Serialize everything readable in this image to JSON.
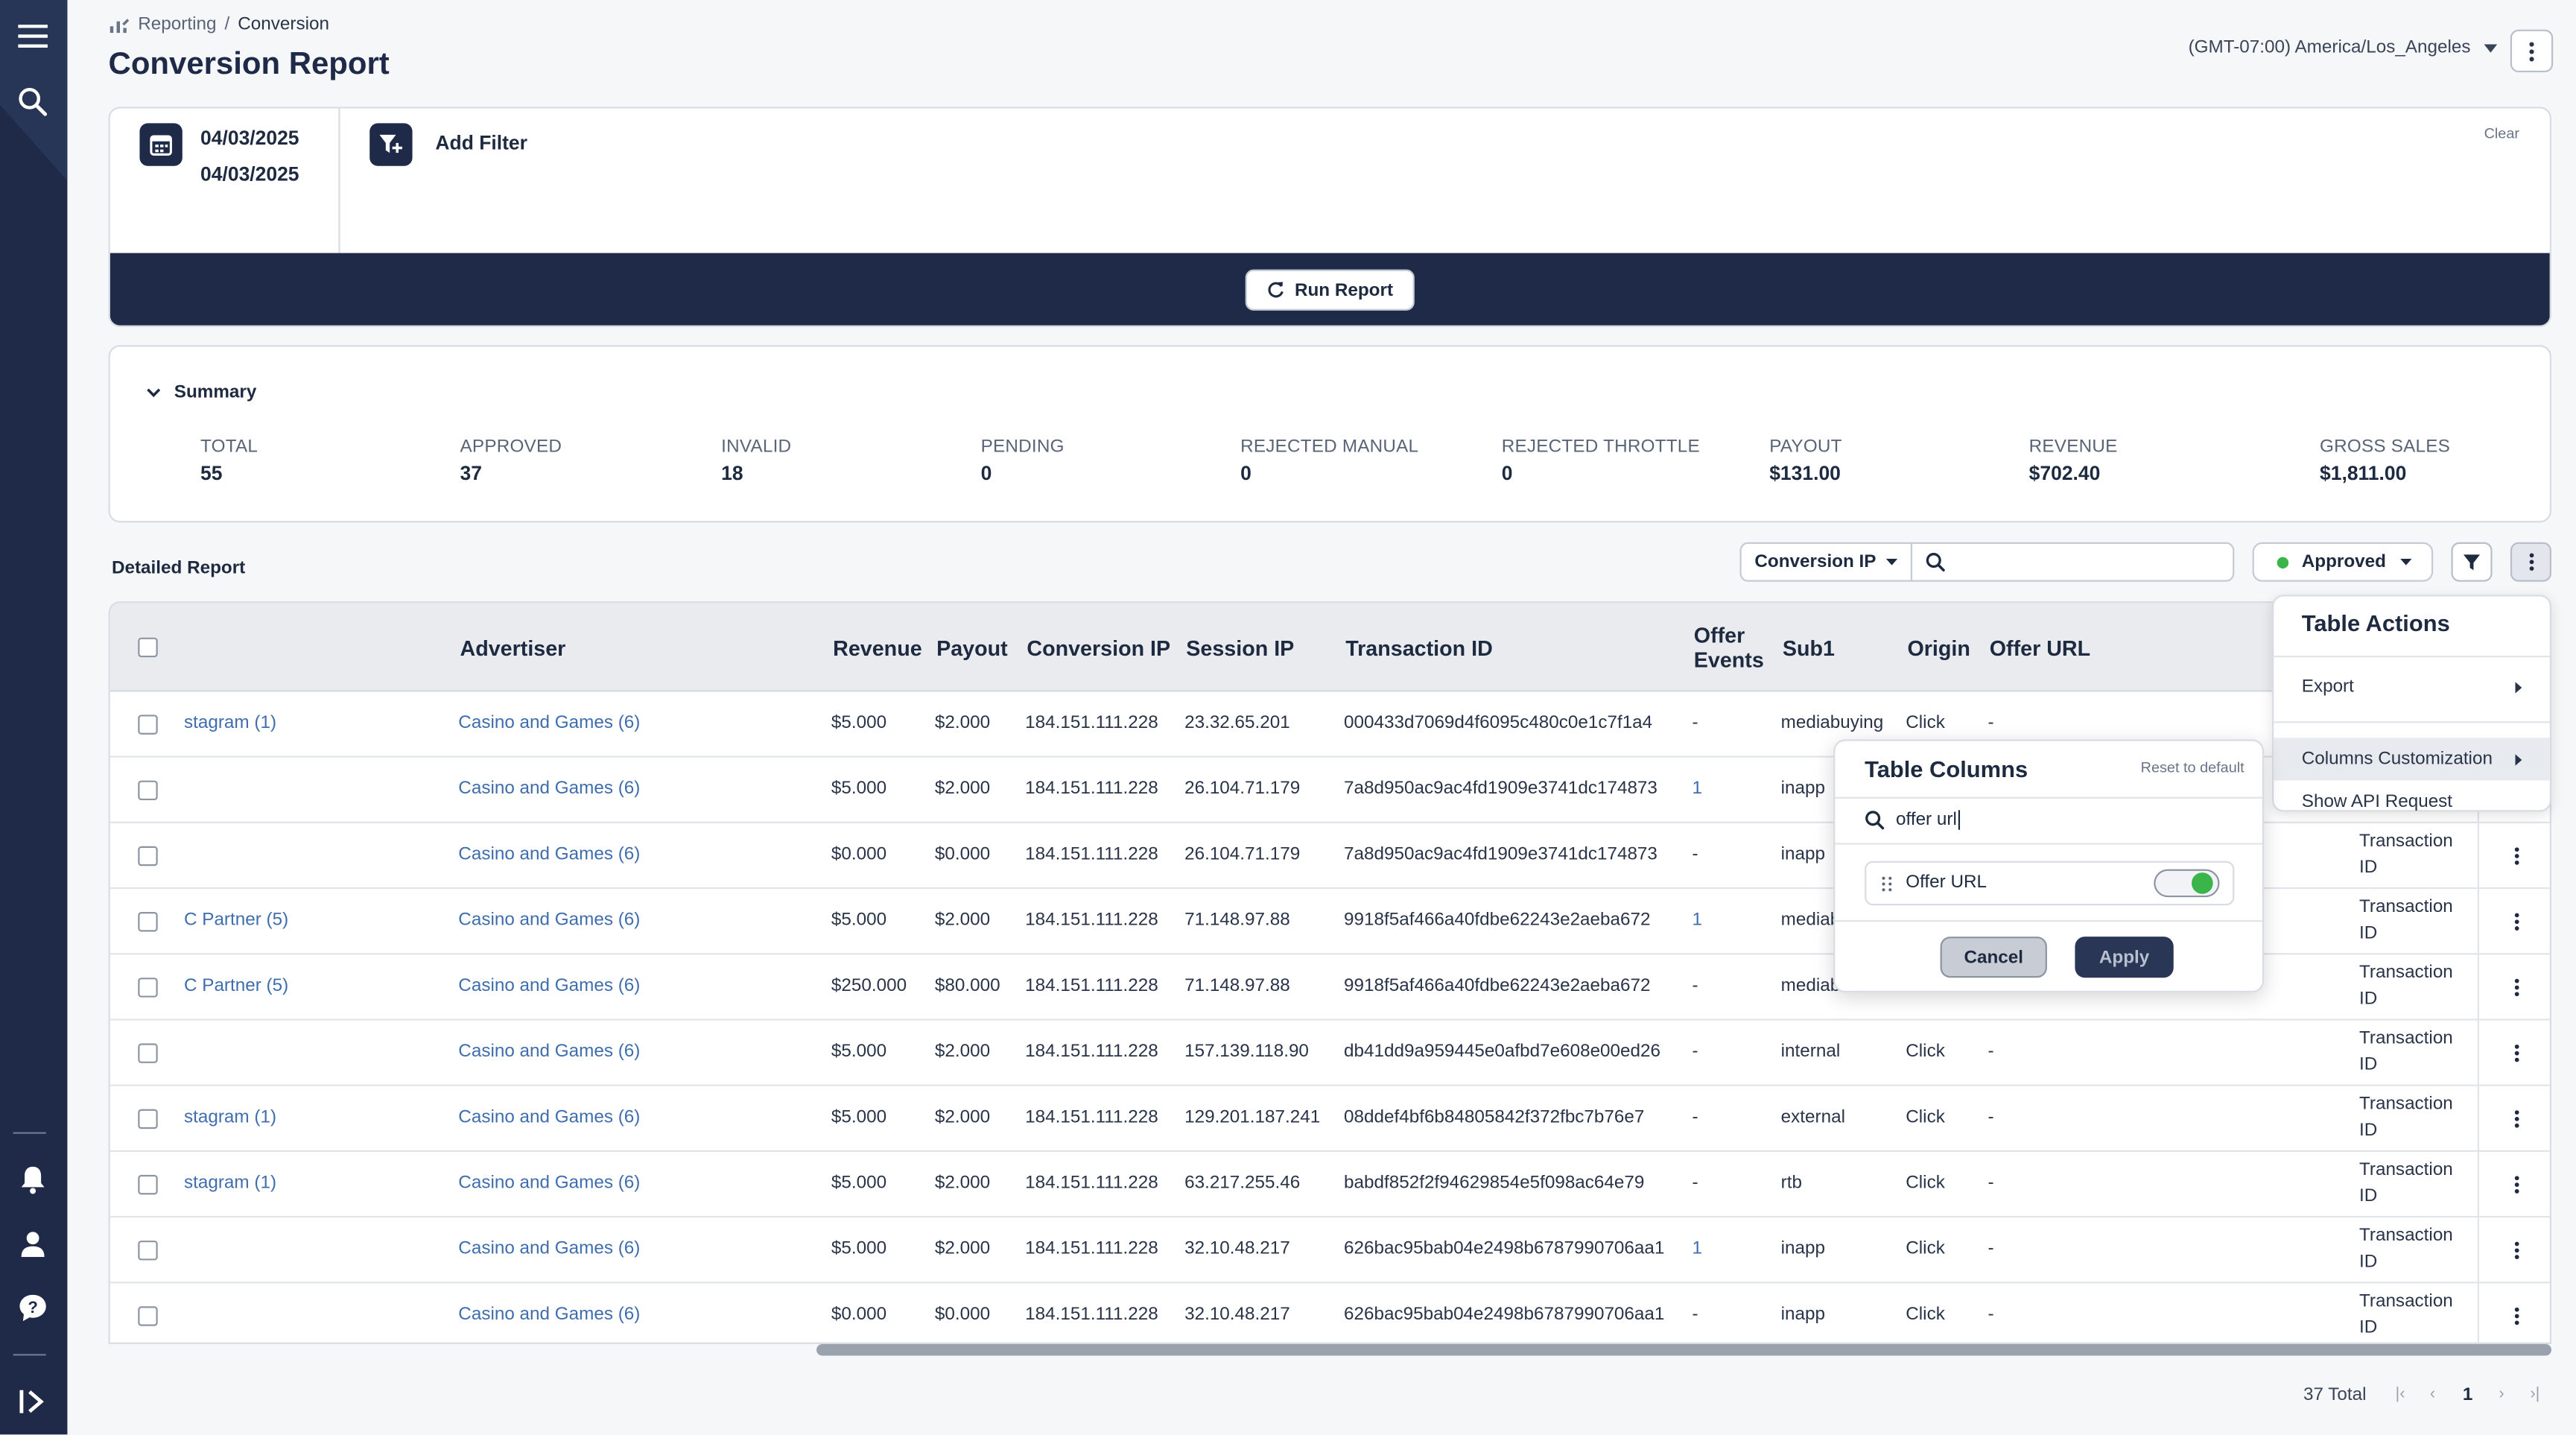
{
  "breadcrumb": {
    "parent": "Reporting",
    "separator": "/",
    "current": "Conversion"
  },
  "page_title": "Conversion Report",
  "timezone": "(GMT-07:00) America/Los_Angeles",
  "filters": {
    "date_start": "04/03/2025",
    "date_end": "04/03/2025",
    "add_filter_label": "Add Filter",
    "clear_label": "Clear",
    "run_report_label": "Run Report"
  },
  "summary": {
    "label": "Summary",
    "stats": [
      {
        "label": "TOTAL",
        "value": "55"
      },
      {
        "label": "APPROVED",
        "value": "37"
      },
      {
        "label": "INVALID",
        "value": "18"
      },
      {
        "label": "PENDING",
        "value": "0"
      },
      {
        "label": "REJECTED MANUAL",
        "value": "0"
      },
      {
        "label": "REJECTED THROTTLE",
        "value": "0"
      },
      {
        "label": "PAYOUT",
        "value": "$131.00"
      },
      {
        "label": "REVENUE",
        "value": "$702.40"
      },
      {
        "label": "GROSS SALES",
        "value": "$1,811.00"
      }
    ]
  },
  "detailed": {
    "label": "Detailed Report",
    "search_field": "Conversion IP",
    "search_value": "",
    "status_filter": "Approved",
    "status_color": "#3bb54a"
  },
  "table": {
    "headers": {
      "advertiser": "Advertiser",
      "revenue": "Revenue",
      "payout": "Payout",
      "conversion_ip": "Conversion IP",
      "session_ip": "Session IP",
      "transaction_id": "Transaction ID",
      "offer_events_1": "Offer",
      "offer_events_2": "Events",
      "sub1": "Sub1",
      "origin": "Origin",
      "offer_url": "Offer URL"
    },
    "rows": [
      {
        "partner": "stagram (1)",
        "advertiser": "Casino and Games (6)",
        "revenue": "$5.000",
        "payout": "$2.000",
        "conv_ip": "184.151.111.228",
        "session_ip": "23.32.65.201",
        "txid": "000433d7069d4f6095c480c0e1c7f1a4",
        "events": "-",
        "sub1": "mediabuying",
        "origin": "Click",
        "offer_url": "-",
        "tx_a": "",
        "tx_b": ""
      },
      {
        "partner": "",
        "advertiser": "Casino and Games (6)",
        "revenue": "$5.000",
        "payout": "$2.000",
        "conv_ip": "184.151.111.228",
        "session_ip": "26.104.71.179",
        "txid": "7a8d950ac9ac4fd1909e3741dc174873",
        "events": "1",
        "sub1": "inapp",
        "origin": "",
        "offer_url": "",
        "tx_a": "",
        "tx_b": ""
      },
      {
        "partner": "",
        "advertiser": "Casino and Games (6)",
        "revenue": "$0.000",
        "payout": "$0.000",
        "conv_ip": "184.151.111.228",
        "session_ip": "26.104.71.179",
        "txid": "7a8d950ac9ac4fd1909e3741dc174873",
        "events": "-",
        "sub1": "inapp",
        "origin": "",
        "offer_url": "",
        "tx_a": "Transaction",
        "tx_b": "ID"
      },
      {
        "partner": "C Partner (5)",
        "advertiser": "Casino and Games (6)",
        "revenue": "$5.000",
        "payout": "$2.000",
        "conv_ip": "184.151.111.228",
        "session_ip": "71.148.97.88",
        "txid": "9918f5af466a40fdbe62243e2aeba672",
        "events": "1",
        "sub1": "mediab",
        "origin": "",
        "offer_url": "",
        "tx_a": "Transaction",
        "tx_b": "ID"
      },
      {
        "partner": "C Partner (5)",
        "advertiser": "Casino and Games (6)",
        "revenue": "$250.000",
        "payout": "$80.000",
        "conv_ip": "184.151.111.228",
        "session_ip": "71.148.97.88",
        "txid": "9918f5af466a40fdbe62243e2aeba672",
        "events": "-",
        "sub1": "mediab",
        "origin": "",
        "offer_url": "",
        "tx_a": "Transaction",
        "tx_b": "ID"
      },
      {
        "partner": "",
        "advertiser": "Casino and Games (6)",
        "revenue": "$5.000",
        "payout": "$2.000",
        "conv_ip": "184.151.111.228",
        "session_ip": "157.139.118.90",
        "txid": "db41dd9a959445e0afbd7e608e00ed26",
        "events": "-",
        "sub1": "internal",
        "origin": "Click",
        "offer_url": "-",
        "tx_a": "Transaction",
        "tx_b": "ID"
      },
      {
        "partner": "stagram (1)",
        "advertiser": "Casino and Games (6)",
        "revenue": "$5.000",
        "payout": "$2.000",
        "conv_ip": "184.151.111.228",
        "session_ip": "129.201.187.241",
        "txid": "08ddef4bf6b84805842f372fbc7b76e7",
        "events": "-",
        "sub1": "external",
        "origin": "Click",
        "offer_url": "-",
        "tx_a": "Transaction",
        "tx_b": "ID"
      },
      {
        "partner": "stagram (1)",
        "advertiser": "Casino and Games (6)",
        "revenue": "$5.000",
        "payout": "$2.000",
        "conv_ip": "184.151.111.228",
        "session_ip": "63.217.255.46",
        "txid": "babdf852f2f94629854e5f098ac64e79",
        "events": "-",
        "sub1": "rtb",
        "origin": "Click",
        "offer_url": "-",
        "tx_a": "Transaction",
        "tx_b": "ID"
      },
      {
        "partner": "",
        "advertiser": "Casino and Games (6)",
        "revenue": "$5.000",
        "payout": "$2.000",
        "conv_ip": "184.151.111.228",
        "session_ip": "32.10.48.217",
        "txid": "626bac95bab04e2498b6787990706aa1",
        "events": "1",
        "sub1": "inapp",
        "origin": "Click",
        "offer_url": "-",
        "tx_a": "Transaction",
        "tx_b": "ID"
      },
      {
        "partner": "",
        "advertiser": "Casino and Games (6)",
        "revenue": "$0.000",
        "payout": "$0.000",
        "conv_ip": "184.151.111.228",
        "session_ip": "32.10.48.217",
        "txid": "626bac95bab04e2498b6787990706aa1",
        "events": "-",
        "sub1": "inapp",
        "origin": "Click",
        "offer_url": "-",
        "tx_a": "Transaction",
        "tx_b": "ID"
      }
    ]
  },
  "table_actions": {
    "title": "Table Actions",
    "export": "Export",
    "columns_customization": "Columns Customization",
    "show_api": "Show API Request"
  },
  "table_columns": {
    "title": "Table Columns",
    "reset": "Reset to default",
    "search_value": "offer url",
    "item_label": "Offer URL",
    "item_enabled": true,
    "cancel": "Cancel",
    "apply": "Apply"
  },
  "pagination": {
    "total": "37 Total",
    "page": "1"
  },
  "icons": {
    "sidebar": [
      "menu-icon",
      "search-icon",
      "bell-icon",
      "user-icon",
      "help-chat-icon",
      "expand-sidebar-icon"
    ],
    "toolbar": [
      "filter-icon",
      "kebab-menu-icon"
    ]
  },
  "colors": {
    "navy": "#1e2a47",
    "link": "#3f6dad",
    "toggle_green": "#3bb54a",
    "apply_button": "#2a3656"
  }
}
